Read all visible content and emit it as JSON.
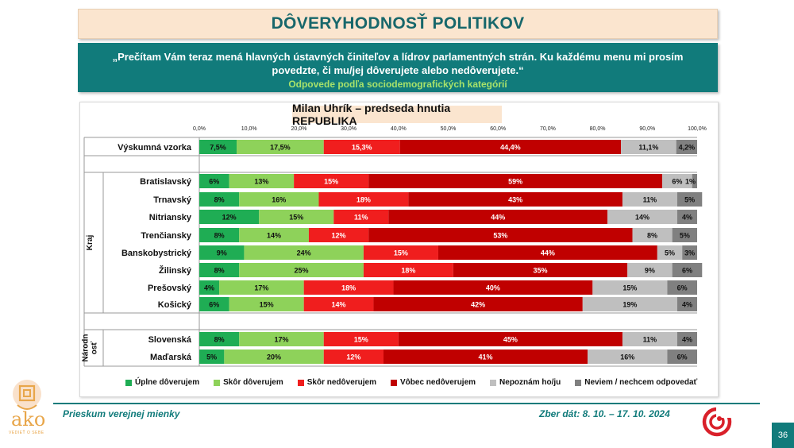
{
  "header": {
    "title": "DÔVERYHODNOSŤ POLITIKOV",
    "question": "„Prečítam Vám teraz mená hlavných ústavných činiteľov a lídrov parlamentných strán. Ku každému menu mi prosím povedzte, či mu/jej dôverujete alebo nedôverujete.“",
    "subtitle": "Odpovede podľa sociodemografických kategórií"
  },
  "chart_data": {
    "type": "bar",
    "orientation": "horizontal",
    "stacked": true,
    "title": "Milan Uhrík – predseda hnutia REPUBLIKA",
    "x_ticks": [
      "0,0%",
      "10,0%",
      "20,0%",
      "30,0%",
      "40,0%",
      "50,0%",
      "60,0%",
      "70,0%",
      "80,0%",
      "90,0%",
      "100,0%"
    ],
    "xlim": [
      0,
      100
    ],
    "groups": [
      {
        "label": "",
        "rows": [
          0
        ]
      },
      {
        "label": "Kraj",
        "rows": [
          1,
          2,
          3,
          4,
          5,
          6,
          7,
          8
        ]
      },
      {
        "label": "Národnosť",
        "label_lines": [
          "Národn",
          "osť"
        ],
        "rows": [
          9,
          10
        ]
      }
    ],
    "categories": [
      "Výskumná vzorka",
      "Bratislavský",
      "Trnavský",
      "Nitriansky",
      "Trenčiansky",
      "Banskobystrický",
      "Žilinský",
      "Prešovský",
      "Košický",
      "Slovenská",
      "Maďarská"
    ],
    "series": [
      {
        "name": "Úplne dôverujem",
        "color": "#1fad54",
        "values": [
          7.5,
          6,
          8,
          12,
          8,
          9,
          8,
          4,
          6,
          8,
          5
        ],
        "labels": [
          "7,5%",
          "6%",
          "8%",
          "12%",
          "8%",
          "9%",
          "8%",
          "4%",
          "6%",
          "8%",
          "5%"
        ]
      },
      {
        "name": "Skôr dôverujem",
        "color": "#8ed25a",
        "values": [
          17.5,
          13,
          16,
          15,
          14,
          24,
          25,
          17,
          15,
          17,
          20
        ],
        "labels": [
          "17,5%",
          "13%",
          "16%",
          "15%",
          "14%",
          "24%",
          "25%",
          "17%",
          "15%",
          "17%",
          "20%"
        ]
      },
      {
        "name": "Skôr nedôverujem",
        "color": "#f01e1e",
        "values": [
          15.3,
          15,
          18,
          11,
          12,
          15,
          18,
          18,
          14,
          15,
          12
        ],
        "labels": [
          "15,3%",
          "15%",
          "18%",
          "11%",
          "12%",
          "15%",
          "18%",
          "18%",
          "14%",
          "15%",
          "12%"
        ]
      },
      {
        "name": "Vôbec nedôverujem",
        "color": "#c00000",
        "values": [
          44.4,
          59,
          43,
          44,
          53,
          44,
          35,
          40,
          42,
          45,
          41
        ],
        "labels": [
          "44,4%",
          "59%",
          "43%",
          "44%",
          "53%",
          "44%",
          "35%",
          "40%",
          "42%",
          "45%",
          "41%"
        ]
      },
      {
        "name": "Nepoznám ho/ju",
        "color": "#bfbfbf",
        "values": [
          11.1,
          6,
          11,
          14,
          8,
          5,
          9,
          15,
          19,
          11,
          16
        ],
        "labels": [
          "11,1%",
          "6%",
          "11%",
          "14%",
          "8%",
          "5%",
          "9%",
          "15%",
          "19%",
          "11%",
          "16%"
        ]
      },
      {
        "name": "Neviem / nechcem odpovedať",
        "color": "#808080",
        "values": [
          4.2,
          1,
          5,
          4,
          5,
          3,
          6,
          6,
          4,
          4,
          6
        ],
        "labels": [
          "4,2%",
          "1%",
          "5%",
          "4%",
          "5%",
          "3%",
          "6%",
          "6%",
          "4%",
          "4%",
          "6%"
        ]
      }
    ]
  },
  "footer": {
    "left": "Prieskum verejnej mienky",
    "right": "Zber dát: 8. 10. – 17. 10. 2024",
    "page": "36",
    "logo_text": "ako",
    "logo_sub": "VEDIEŤ O SEBE"
  }
}
